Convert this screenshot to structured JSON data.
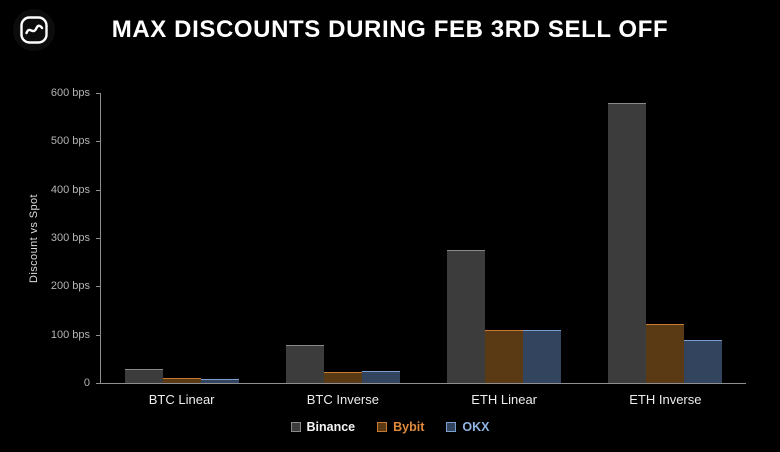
{
  "header": {
    "title": "MAX DISCOUNTS DURING FEB 3RD SELL OFF",
    "logo_icon": "squiggle-badge-logo"
  },
  "chart_data": {
    "type": "bar",
    "title": "MAX DISCOUNTS DURING FEB 3RD SELL OFF",
    "xlabel": "",
    "ylabel": "Discount vs Spot",
    "ylim": [
      0,
      600
    ],
    "ytick_step": 100,
    "ytick_suffix": " bps",
    "grid": false,
    "legend_position": "bottom",
    "categories": [
      "BTC Linear",
      "BTC Inverse",
      "ETH Linear",
      "ETH Inverse"
    ],
    "series": [
      {
        "name": "Binance",
        "values": [
          30,
          78,
          275,
          580
        ],
        "color": "#3c3c3c",
        "edge": "#8a8a8a",
        "label_color": "#f5f5f5"
      },
      {
        "name": "Bybit",
        "values": [
          10,
          22,
          110,
          123
        ],
        "color": "#5a3a14",
        "edge": "#c97a2e",
        "label_color": "#e08a3c"
      },
      {
        "name": "OKX",
        "values": [
          8,
          25,
          110,
          88
        ],
        "color": "#33445f",
        "edge": "#7aa0cf",
        "label_color": "#8fb4e3"
      }
    ]
  }
}
